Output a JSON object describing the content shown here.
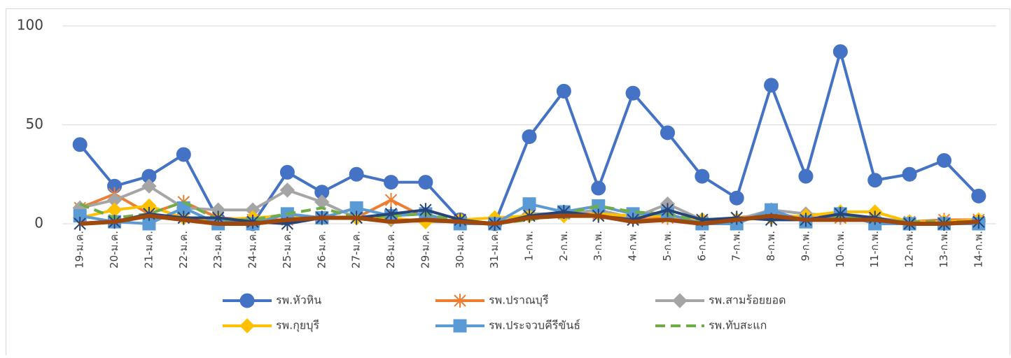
{
  "chart_data": {
    "type": "line",
    "categories": [
      "19-ม.ค.",
      "20-ม.ค.",
      "21-ม.ค.",
      "22-ม.ค.",
      "23-ม.ค.",
      "24-ม.ค.",
      "25-ม.ค.",
      "26-ม.ค.",
      "27-ม.ค.",
      "28-ม.ค.",
      "29-ม.ค.",
      "30-ม.ค.",
      "31-ม.ค.",
      "1-ก.พ.",
      "2-ก.พ.",
      "3-ก.พ.",
      "4-ก.พ.",
      "5-ก.พ.",
      "6-ก.พ.",
      "7-ก.พ.",
      "8-ก.พ.",
      "9-ก.พ.",
      "10-ก.พ.",
      "11-ก.พ.",
      "12-ก.พ.",
      "13-ก.พ.",
      "14-ก.พ."
    ],
    "ylim": [
      0,
      100
    ],
    "yticks": [
      0,
      50,
      100
    ],
    "grid": true,
    "legend": "bottom",
    "series": [
      {
        "name": "รพ.หัวหิน",
        "color": "#4472c4",
        "marker": "circle",
        "values": [
          40,
          19,
          24,
          35,
          2,
          0,
          26,
          16,
          25,
          21,
          21,
          2,
          0,
          44,
          67,
          18,
          66,
          46,
          24,
          13,
          70,
          24,
          87,
          22,
          25,
          32,
          14
        ]
      },
      {
        "name": "รพ.ปราณบุรี",
        "color": "#ed7d31",
        "marker": "star",
        "values": [
          8,
          15,
          5,
          11,
          3,
          2,
          2,
          3,
          3,
          12,
          3,
          1,
          0,
          5,
          5,
          5,
          2,
          3,
          1,
          3,
          5,
          3,
          3,
          2,
          1,
          2,
          2
        ]
      },
      {
        "name": "รพ.สามร้อยยอด",
        "color": "#a5a5a5",
        "marker": "diamond",
        "values": [
          8,
          12,
          19,
          8,
          7,
          7,
          17,
          11,
          3,
          2,
          1,
          1,
          0,
          5,
          5,
          7,
          3,
          10,
          2,
          2,
          7,
          5,
          4,
          3,
          1,
          1,
          1
        ]
      },
      {
        "name": "รพ.กุยบุรี",
        "color": "#ffc000",
        "marker": "diamond",
        "values": [
          3,
          7,
          9,
          3,
          2,
          3,
          4,
          3,
          3,
          3,
          1,
          2,
          3,
          4,
          4,
          5,
          4,
          4,
          2,
          2,
          3,
          4,
          6,
          6,
          1,
          1,
          2
        ]
      },
      {
        "name": "รพ.ประจวบคีรีขันธ์",
        "color": "#5b9bd5",
        "marker": "square",
        "values": [
          4,
          1,
          0,
          8,
          0,
          0,
          5,
          3,
          8,
          4,
          5,
          0,
          0,
          10,
          6,
          9,
          5,
          5,
          0,
          0,
          7,
          1,
          5,
          0,
          0,
          0,
          0
        ]
      },
      {
        "name": "รพ.ทับสะแก",
        "color": "#70ad47",
        "dash": true,
        "values": [
          10,
          3,
          5,
          11,
          2,
          2,
          5,
          8,
          3,
          4,
          5,
          1,
          0,
          2,
          5,
          9,
          6,
          5,
          1,
          2,
          4,
          2,
          4,
          2,
          1,
          1,
          1
        ]
      },
      {
        "color": "#264478",
        "marker": "star",
        "values": [
          0,
          1,
          5,
          3,
          3,
          1,
          0,
          3,
          3,
          5,
          7,
          2,
          0,
          4,
          6,
          4,
          2,
          7,
          2,
          3,
          2,
          2,
          5,
          3,
          0,
          0,
          1
        ]
      },
      {
        "color": "#9e480e",
        "thick": true,
        "values": [
          0,
          1,
          4,
          2,
          0,
          0,
          2,
          3,
          3,
          1,
          2,
          1,
          0,
          3,
          4,
          4,
          1,
          2,
          0,
          2,
          4,
          2,
          2,
          2,
          0,
          0,
          1
        ]
      }
    ]
  }
}
